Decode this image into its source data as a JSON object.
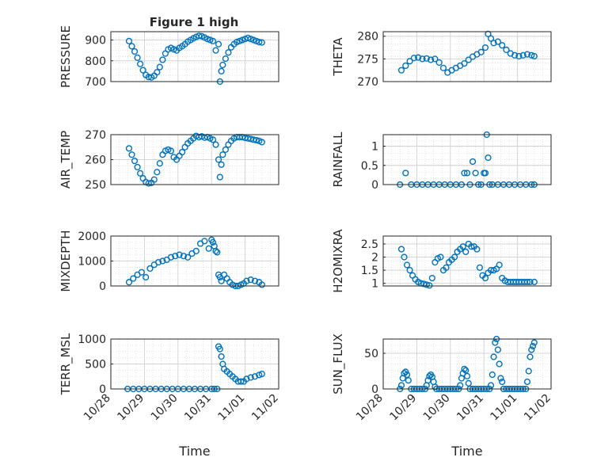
{
  "window": {
    "title": "Figure 1 high"
  },
  "chart_data": [
    {
      "type": "scatter",
      "title": "Figure 1 high",
      "ylabel": "PRESSURE",
      "xlim": [
        "10/28",
        "11/02"
      ],
      "ylim": [
        700,
        940
      ],
      "yticks": [
        "700",
        "800",
        "900"
      ],
      "series": [
        {
          "x": [
            "10/28 13:00",
            "10/28 15:00",
            "10/28 17:00",
            "10/28 19:00",
            "10/28 21:00",
            "10/28 23:00",
            "10/29 01:00",
            "10/29 03:00",
            "10/29 05:00",
            "10/29 07:00",
            "10/29 09:00",
            "10/29 11:00",
            "10/29 13:00",
            "10/29 15:00",
            "10/29 17:00",
            "10/29 19:00",
            "10/29 21:00",
            "10/29 23:00",
            "10/30 01:00",
            "10/30 03:00",
            "10/30 05:00",
            "10/30 07:00",
            "10/30 09:00",
            "10/30 11:00",
            "10/30 13:00",
            "10/30 15:00",
            "10/30 17:00",
            "10/30 19:00",
            "10/30 21:00",
            "10/30 23:00",
            "10/31 01:00",
            "10/31 03:00",
            "10/31 05:00",
            "10/31 06:00",
            "10/31 07:00",
            "10/31 08:00",
            "10/31 10:00",
            "10/31 12:00",
            "10/31 14:00",
            "10/31 16:00",
            "10/31 18:00",
            "10/31 20:00",
            "10/31 22:00",
            "11/01 00:00",
            "11/01 02:00",
            "11/01 04:00",
            "11/01 06:00",
            "11/01 08:00",
            "11/01 10:00",
            "11/01 12:00"
          ],
          "y": [
            895,
            870,
            845,
            815,
            785,
            755,
            732,
            722,
            720,
            728,
            745,
            770,
            805,
            835,
            855,
            862,
            855,
            850,
            862,
            870,
            880,
            892,
            900,
            908,
            915,
            920,
            918,
            912,
            905,
            900,
            895,
            850,
            880,
            700,
            750,
            780,
            810,
            840,
            865,
            880,
            890,
            895,
            900,
            905,
            910,
            905,
            900,
            895,
            890,
            888
          ]
        }
      ]
    },
    {
      "type": "scatter",
      "ylabel": "THETA",
      "xlim": [
        "10/28",
        "11/02"
      ],
      "ylim": [
        270,
        281
      ],
      "yticks": [
        "270",
        "275",
        "280"
      ],
      "series": [
        {
          "x": [
            "10/28 13:00",
            "10/28 16:00",
            "10/28 19:00",
            "10/28 22:00",
            "10/29 01:00",
            "10/29 04:00",
            "10/29 07:00",
            "10/29 10:00",
            "10/29 13:00",
            "10/29 16:00",
            "10/29 19:00",
            "10/29 22:00",
            "10/30 01:00",
            "10/30 04:00",
            "10/30 07:00",
            "10/30 10:00",
            "10/30 13:00",
            "10/30 16:00",
            "10/30 19:00",
            "10/30 22:00",
            "10/31 01:00",
            "10/31 03:00",
            "10/31 05:00",
            "10/31 07:00",
            "10/31 10:00",
            "10/31 13:00",
            "10/31 16:00",
            "10/31 19:00",
            "10/31 22:00",
            "11/01 01:00",
            "11/01 04:00",
            "11/01 07:00",
            "11/01 10:00",
            "11/01 12:00"
          ],
          "y": [
            272.5,
            273.5,
            274.5,
            275.2,
            275.3,
            275.0,
            275.1,
            274.8,
            275.0,
            274.2,
            273.0,
            272.0,
            272.5,
            273.0,
            273.5,
            274.0,
            274.8,
            275.5,
            276.0,
            276.5,
            277.5,
            280.5,
            279.5,
            278.5,
            278.8,
            278.0,
            277.0,
            276.2,
            275.8,
            275.6,
            275.8,
            276.0,
            275.8,
            275.6
          ]
        }
      ]
    },
    {
      "type": "scatter",
      "ylabel": "AIR_TEMP",
      "xlim": [
        "10/28",
        "11/02"
      ],
      "ylim": [
        250,
        270
      ],
      "yticks": [
        "250",
        "260",
        "270"
      ],
      "series": [
        {
          "x": [
            "10/28 13:00",
            "10/28 15:00",
            "10/28 17:00",
            "10/28 19:00",
            "10/28 21:00",
            "10/28 23:00",
            "10/29 01:00",
            "10/29 03:00",
            "10/29 05:00",
            "10/29 07:00",
            "10/29 09:00",
            "10/29 11:00",
            "10/29 13:00",
            "10/29 15:00",
            "10/29 17:00",
            "10/29 19:00",
            "10/29 21:00",
            "10/29 23:00",
            "10/30 01:00",
            "10/30 03:00",
            "10/30 05:00",
            "10/30 07:00",
            "10/30 09:00",
            "10/30 11:00",
            "10/30 13:00",
            "10/30 15:00",
            "10/30 17:00",
            "10/30 19:00",
            "10/30 21:00",
            "10/30 23:00",
            "10/31 01:00",
            "10/31 03:00",
            "10/31 05:00",
            "10/31 06:00",
            "10/31 07:00",
            "10/31 08:00",
            "10/31 10:00",
            "10/31 12:00",
            "10/31 14:00",
            "10/31 16:00",
            "10/31 18:00",
            "10/31 20:00",
            "10/31 22:00",
            "11/01 00:00",
            "11/01 02:00",
            "11/01 04:00",
            "11/01 06:00",
            "11/01 08:00",
            "11/01 10:00",
            "11/01 12:00"
          ],
          "y": [
            264.5,
            262,
            259.5,
            257,
            254.5,
            252.5,
            251,
            250.5,
            250.7,
            252,
            255,
            258.5,
            262,
            263.5,
            264,
            263.5,
            261,
            260,
            261.5,
            263,
            265,
            266.5,
            267.5,
            268.5,
            269.5,
            269,
            269.3,
            268.8,
            269,
            268.5,
            268,
            266,
            260,
            253,
            258,
            262,
            264,
            266,
            267.5,
            268.5,
            269,
            269,
            269,
            268.7,
            268.5,
            268.3,
            268,
            267.8,
            267.5,
            267
          ]
        }
      ]
    },
    {
      "type": "scatter",
      "ylabel": "RAINFALL",
      "xlim": [
        "10/28",
        "11/02"
      ],
      "ylim": [
        0,
        1.3
      ],
      "yticks": [
        "0",
        "0.5",
        "1"
      ],
      "series": [
        {
          "x": [
            "10/28 12:00",
            "10/28 16:00",
            "10/28 20:00",
            "10/29 00:00",
            "10/29 04:00",
            "10/29 08:00",
            "10/29 12:00",
            "10/29 16:00",
            "10/29 20:00",
            "10/30 00:00",
            "10/30 04:00",
            "10/30 08:00",
            "10/30 10:00",
            "10/30 12:00",
            "10/30 14:00",
            "10/30 16:00",
            "10/30 18:00",
            "10/30 20:00",
            "10/30 22:00",
            "10/31 00:00",
            "10/31 01:00",
            "10/31 02:00",
            "10/31 03:00",
            "10/31 04:00",
            "10/31 06:00",
            "10/31 10:00",
            "10/31 14:00",
            "10/31 18:00",
            "10/31 22:00",
            "11/01 02:00",
            "11/01 06:00",
            "11/01 10:00",
            "11/01 12:00"
          ],
          "y": [
            0,
            0.3,
            0,
            0,
            0,
            0,
            0,
            0,
            0,
            0,
            0,
            0,
            0.3,
            0.3,
            0,
            0.6,
            0.3,
            0,
            0,
            0.3,
            0.3,
            1.3,
            0.7,
            0,
            0,
            0,
            0,
            0,
            0,
            0,
            0,
            0,
            0
          ]
        }
      ]
    },
    {
      "type": "scatter",
      "ylabel": "MIXDEPTH",
      "xlim": [
        "10/28",
        "11/02"
      ],
      "ylim": [
        0,
        2000
      ],
      "yticks": [
        "0",
        "1000",
        "2000"
      ],
      "series": [
        {
          "x": [
            "10/28 13:00",
            "10/28 16:00",
            "10/28 19:00",
            "10/28 22:00",
            "10/29 01:00",
            "10/29 04:00",
            "10/29 07:00",
            "10/29 10:00",
            "10/29 13:00",
            "10/29 16:00",
            "10/29 19:00",
            "10/29 22:00",
            "10/30 01:00",
            "10/30 04:00",
            "10/30 07:00",
            "10/30 10:00",
            "10/30 13:00",
            "10/30 16:00",
            "10/30 19:00",
            "10/30 22:00",
            "10/31 00:00",
            "10/31 01:00",
            "10/31 02:00",
            "10/31 03:00",
            "10/31 04:00",
            "10/31 05:00",
            "10/31 06:00",
            "10/31 07:00",
            "10/31 09:00",
            "10/31 11:00",
            "10/31 13:00",
            "10/31 15:00",
            "10/31 17:00",
            "10/31 19:00",
            "10/31 21:00",
            "10/31 23:00",
            "11/01 01:00",
            "11/01 04:00",
            "11/01 07:00",
            "11/01 10:00",
            "11/01 12:00"
          ],
          "y": [
            150,
            300,
            450,
            550,
            350,
            700,
            850,
            950,
            1000,
            1050,
            1150,
            1200,
            1250,
            1200,
            1150,
            1300,
            1400,
            1700,
            1800,
            1500,
            1850,
            1750,
            1600,
            1400,
            1350,
            450,
            350,
            200,
            450,
            300,
            150,
            50,
            0,
            0,
            50,
            100,
            200,
            250,
            200,
            150,
            50
          ]
        }
      ]
    },
    {
      "type": "scatter",
      "ylabel": "H2OMIXRA",
      "xlim": [
        "10/28",
        "11/02"
      ],
      "ylim": [
        0.9,
        2.8
      ],
      "yticks": [
        "1",
        "1.5",
        "2",
        "2.5"
      ],
      "series": [
        {
          "x": [
            "10/28 13:00",
            "10/28 15:00",
            "10/28 17:00",
            "10/28 19:00",
            "10/28 21:00",
            "10/28 23:00",
            "10/29 01:00",
            "10/29 03:00",
            "10/29 05:00",
            "10/29 07:00",
            "10/29 09:00",
            "10/29 11:00",
            "10/29 13:00",
            "10/29 15:00",
            "10/29 17:00",
            "10/29 19:00",
            "10/29 21:00",
            "10/29 23:00",
            "10/30 01:00",
            "10/30 03:00",
            "10/30 05:00",
            "10/30 07:00",
            "10/30 09:00",
            "10/30 11:00",
            "10/30 13:00",
            "10/30 15:00",
            "10/30 17:00",
            "10/30 19:00",
            "10/30 21:00",
            "10/30 23:00",
            "10/31 01:00",
            "10/31 03:00",
            "10/31 05:00",
            "10/31 07:00",
            "10/31 09:00",
            "10/31 11:00",
            "10/31 13:00",
            "10/31 15:00",
            "10/31 17:00",
            "10/31 19:00",
            "10/31 21:00",
            "10/31 23:00",
            "11/01 01:00",
            "11/01 03:00",
            "11/01 05:00",
            "11/01 07:00",
            "11/01 09:00",
            "11/01 12:00"
          ],
          "y": [
            2.3,
            2.0,
            1.7,
            1.5,
            1.3,
            1.15,
            1.05,
            1.0,
            0.98,
            0.95,
            0.92,
            1.2,
            1.8,
            1.95,
            2.0,
            1.5,
            1.6,
            1.8,
            1.9,
            2.0,
            2.2,
            2.3,
            2.4,
            2.2,
            2.5,
            2.4,
            2.4,
            2.3,
            1.6,
            1.3,
            1.2,
            1.4,
            1.5,
            1.5,
            1.55,
            1.7,
            1.2,
            1.1,
            1.05,
            1.05,
            1.05,
            1.05,
            1.05,
            1.05,
            1.05,
            1.05,
            1.05,
            1.05
          ]
        }
      ]
    },
    {
      "type": "scatter",
      "ylabel": "TERR_MSL",
      "xlabel": "Time",
      "xlim": [
        "10/28",
        "11/02"
      ],
      "ylim": [
        0,
        1000
      ],
      "yticks": [
        "0",
        "500",
        "1000"
      ],
      "xticks": [
        "10/28",
        "10/29",
        "10/30",
        "10/31",
        "11/01",
        "11/02"
      ],
      "series": [
        {
          "x": [
            "10/28 12:00",
            "10/28 16:00",
            "10/28 20:00",
            "10/29 00:00",
            "10/29 04:00",
            "10/29 08:00",
            "10/29 12:00",
            "10/29 16:00",
            "10/29 20:00",
            "10/30 00:00",
            "10/30 04:00",
            "10/30 08:00",
            "10/30 12:00",
            "10/30 16:00",
            "10/30 20:00",
            "10/31 00:00",
            "10/31 02:00",
            "10/31 04:00",
            "10/31 05:00",
            "10/31 06:00",
            "10/31 07:00",
            "10/31 08:00",
            "10/31 09:00",
            "10/31 11:00",
            "10/31 13:00",
            "10/31 15:00",
            "10/31 17:00",
            "10/31 19:00",
            "10/31 21:00",
            "10/31 23:00",
            "11/01 01:00",
            "11/01 04:00",
            "11/01 07:00",
            "11/01 10:00",
            "11/01 12:00"
          ],
          "y": [
            0,
            0,
            0,
            0,
            0,
            0,
            0,
            0,
            0,
            0,
            0,
            0,
            0,
            0,
            0,
            0,
            0,
            0,
            850,
            800,
            650,
            500,
            400,
            350,
            300,
            250,
            200,
            150,
            150,
            150,
            200,
            230,
            250,
            280,
            300
          ]
        }
      ]
    },
    {
      "type": "scatter",
      "ylabel": "SUN_FLUX",
      "xlabel": "Time",
      "xlim": [
        "10/28",
        "11/02"
      ],
      "ylim": [
        0,
        70
      ],
      "yticks": [
        "0",
        "50"
      ],
      "xticks": [
        "10/28",
        "10/29",
        "10/30",
        "10/31",
        "11/01",
        "11/02"
      ],
      "series": [
        {
          "x": [
            "10/28 12:00",
            "10/28 13:00",
            "10/28 14:00",
            "10/28 15:00",
            "10/28 16:00",
            "10/28 17:00",
            "10/28 18:00",
            "10/28 20:00",
            "10/28 22:00",
            "10/29 00:00",
            "10/29 02:00",
            "10/29 04:00",
            "10/29 06:00",
            "10/29 07:00",
            "10/29 08:00",
            "10/29 09:00",
            "10/29 10:00",
            "10/29 11:00",
            "10/29 12:00",
            "10/29 13:00",
            "10/29 14:00",
            "10/29 16:00",
            "10/29 18:00",
            "10/29 20:00",
            "10/29 22:00",
            "10/30 00:00",
            "10/30 02:00",
            "10/30 04:00",
            "10/30 06:00",
            "10/30 07:00",
            "10/30 08:00",
            "10/30 09:00",
            "10/30 10:00",
            "10/30 11:00",
            "10/30 12:00",
            "10/30 13:00",
            "10/30 14:00",
            "10/30 16:00",
            "10/30 18:00",
            "10/30 20:00",
            "10/30 22:00",
            "10/31 00:00",
            "10/31 02:00",
            "10/31 04:00",
            "10/31 05:00",
            "10/31 06:00",
            "10/31 07:00",
            "10/31 08:00",
            "10/31 09:00",
            "10/31 10:00",
            "10/31 11:00",
            "10/31 12:00",
            "10/31 13:00",
            "10/31 14:00",
            "10/31 16:00",
            "10/31 18:00",
            "10/31 20:00",
            "10/31 22:00",
            "11/01 00:00",
            "11/01 02:00",
            "11/01 04:00",
            "11/01 06:00",
            "11/01 07:00",
            "11/01 08:00",
            "11/01 09:00",
            "11/01 10:00",
            "11/01 11:00",
            "11/01 12:00"
          ],
          "y": [
            0,
            5,
            15,
            22,
            24,
            20,
            12,
            0,
            0,
            0,
            0,
            0,
            0,
            5,
            12,
            18,
            20,
            17,
            10,
            3,
            0,
            0,
            0,
            0,
            0,
            0,
            0,
            0,
            0,
            5,
            15,
            22,
            28,
            26,
            18,
            8,
            0,
            0,
            0,
            0,
            0,
            0,
            0,
            0,
            5,
            20,
            45,
            65,
            70,
            55,
            35,
            15,
            10,
            0,
            0,
            0,
            0,
            0,
            0,
            0,
            0,
            0,
            10,
            25,
            45,
            55,
            60,
            65
          ]
        }
      ]
    }
  ]
}
